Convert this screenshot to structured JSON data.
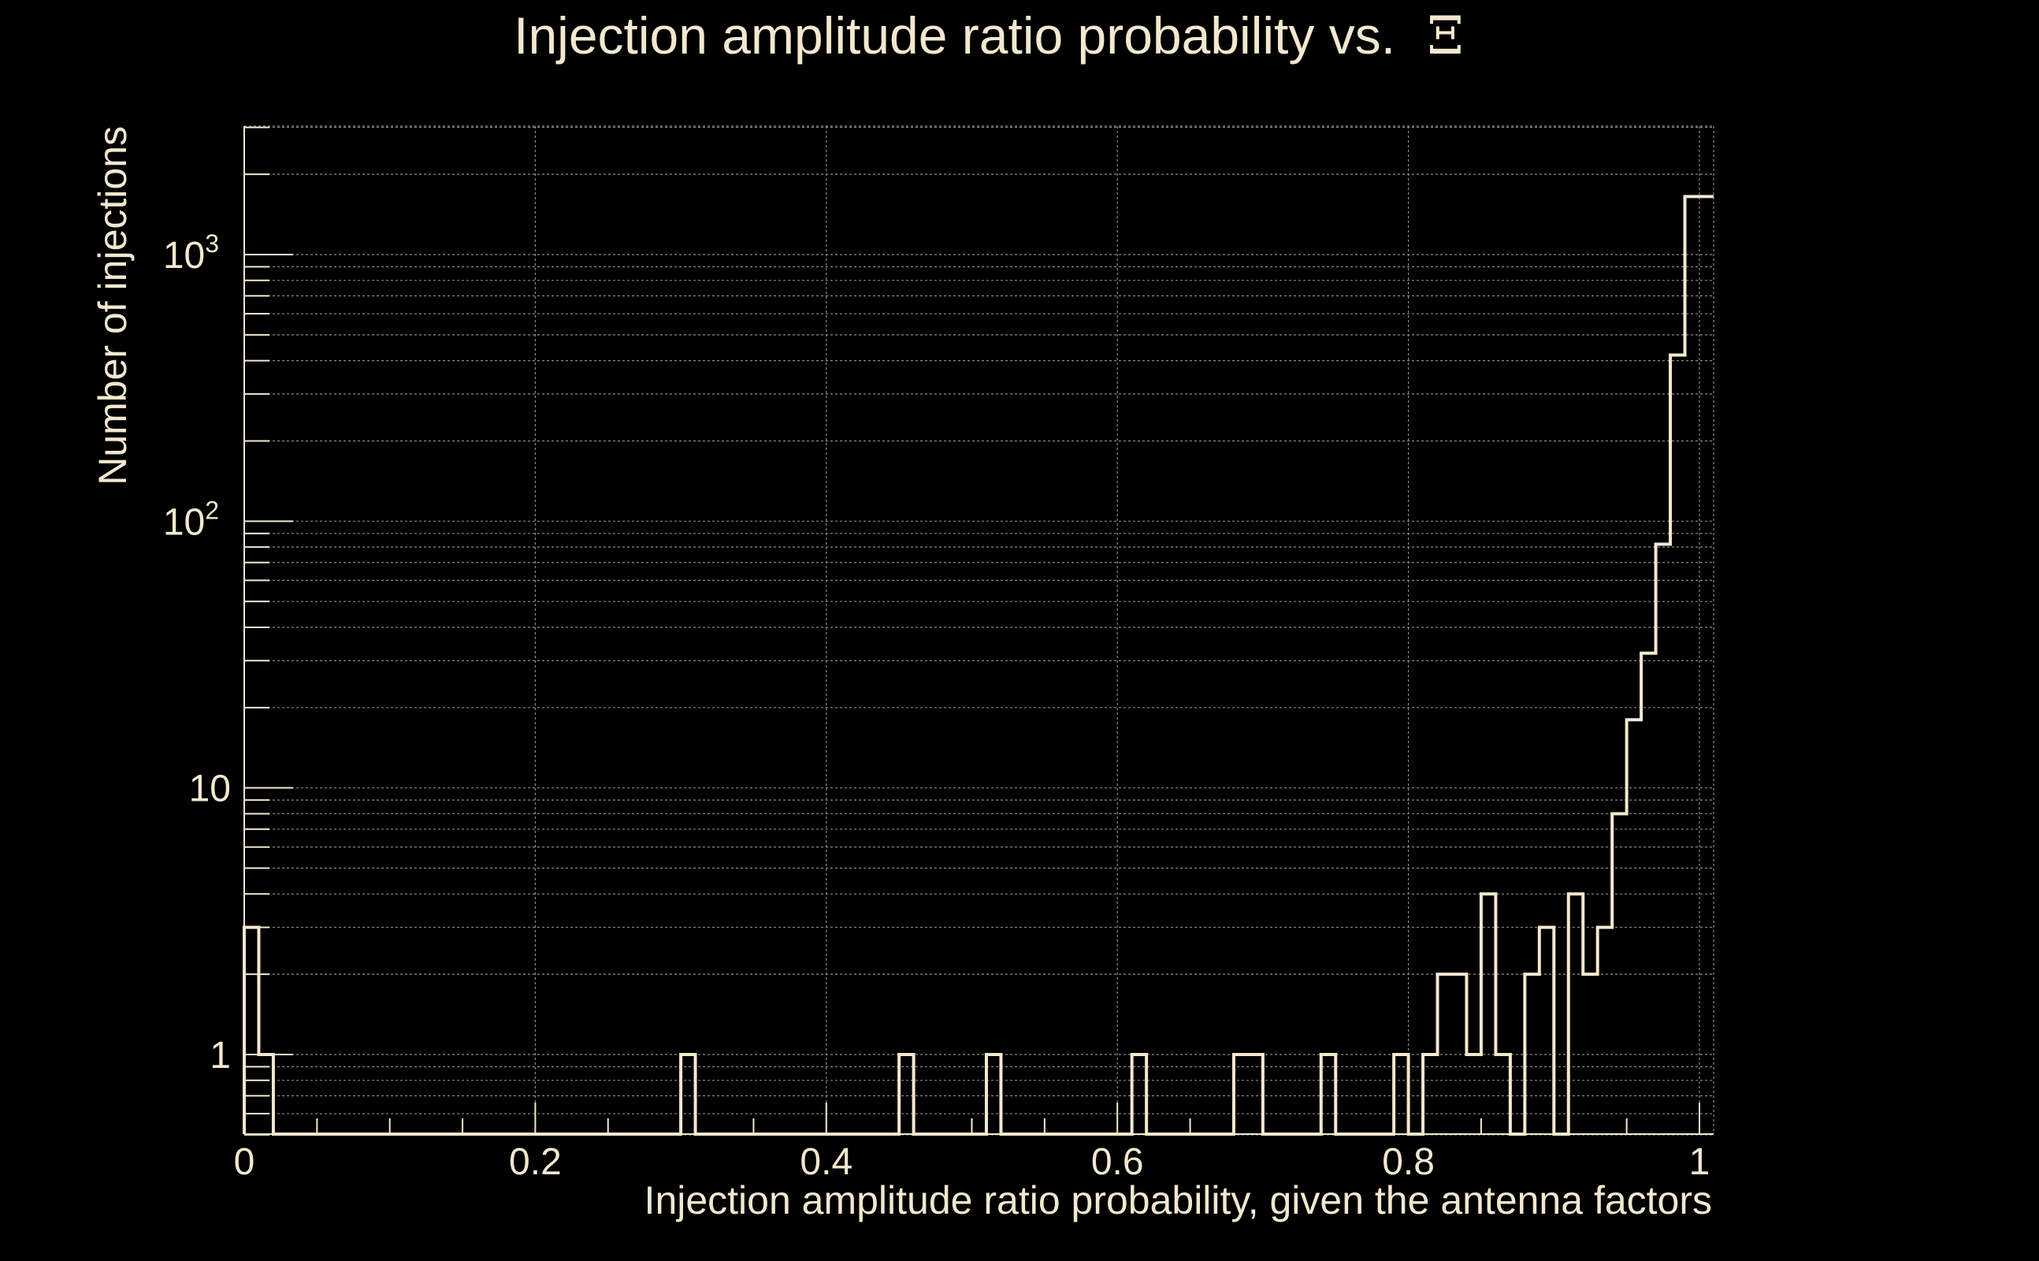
{
  "chart_data": {
    "type": "histogram-step",
    "title": "Injection amplitude ratio probability vs.",
    "title_symbol": "Ξ",
    "xlabel": "Injection amplitude ratio probability, given the antenna factors",
    "ylabel": "Number of injections",
    "xlim": [
      0,
      1.01
    ],
    "ylim": [
      0.5,
      3000
    ],
    "y_scale": "log",
    "grid": true,
    "x_ticks": [
      {
        "value": 0,
        "label": "0"
      },
      {
        "value": 0.2,
        "label": "0.2"
      },
      {
        "value": 0.4,
        "label": "0.4"
      },
      {
        "value": 0.6,
        "label": "0.6"
      },
      {
        "value": 0.8,
        "label": "0.8"
      },
      {
        "value": 1,
        "label": "1"
      }
    ],
    "y_ticks": [
      {
        "value": 1,
        "label": "1",
        "sup": ""
      },
      {
        "value": 10,
        "label": "10",
        "sup": ""
      },
      {
        "value": 100,
        "label": "10",
        "sup": "2"
      },
      {
        "value": 1000,
        "label": "10",
        "sup": "3"
      }
    ],
    "bin_width": 0.01,
    "bins": [
      {
        "x": 0.0,
        "count": 3
      },
      {
        "x": 0.01,
        "count": 1
      },
      {
        "x": 0.3,
        "count": 1
      },
      {
        "x": 0.45,
        "count": 1
      },
      {
        "x": 0.51,
        "count": 1
      },
      {
        "x": 0.61,
        "count": 1
      },
      {
        "x": 0.68,
        "count": 1
      },
      {
        "x": 0.69,
        "count": 1
      },
      {
        "x": 0.74,
        "count": 1
      },
      {
        "x": 0.79,
        "count": 1
      },
      {
        "x": 0.81,
        "count": 1
      },
      {
        "x": 0.82,
        "count": 2
      },
      {
        "x": 0.83,
        "count": 2
      },
      {
        "x": 0.84,
        "count": 1
      },
      {
        "x": 0.85,
        "count": 4
      },
      {
        "x": 0.86,
        "count": 1
      },
      {
        "x": 0.88,
        "count": 2
      },
      {
        "x": 0.89,
        "count": 3
      },
      {
        "x": 0.91,
        "count": 4
      },
      {
        "x": 0.92,
        "count": 2
      },
      {
        "x": 0.93,
        "count": 3
      },
      {
        "x": 0.94,
        "count": 8
      },
      {
        "x": 0.95,
        "count": 18
      },
      {
        "x": 0.96,
        "count": 32
      },
      {
        "x": 0.97,
        "count": 82
      },
      {
        "x": 0.98,
        "count": 420
      },
      {
        "x": 0.99,
        "count": 1650
      }
    ],
    "colors": {
      "background": "#000000",
      "foreground": "#f3e8cf",
      "grid": "#8a8a8a"
    }
  }
}
